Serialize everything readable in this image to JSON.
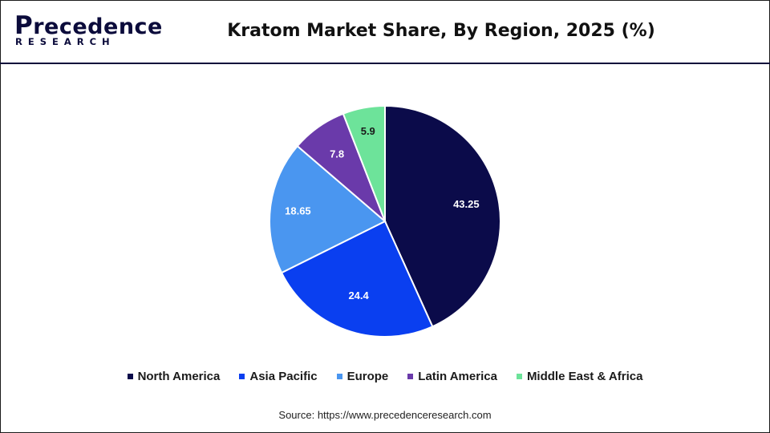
{
  "header": {
    "logo_main": "recedence",
    "logo_initial": "P",
    "logo_sub": "RESEARCH",
    "title": "Kratom Market Share, By Region, 2025 (%)"
  },
  "chart_data": {
    "type": "pie",
    "title": "Kratom Market Share, By Region, 2025 (%)",
    "categories": [
      "North America",
      "Asia Pacific",
      "Europe",
      "Latin America",
      "Middle East & Africa"
    ],
    "values": [
      43.25,
      24.4,
      18.65,
      7.8,
      5.9
    ],
    "labels": [
      "43.25",
      "24.4",
      "18.65",
      "7.8",
      "5.9"
    ],
    "colors": [
      "#0b0b4a",
      "#0a3ff0",
      "#4a96f0",
      "#6a3aaa",
      "#6de39a"
    ],
    "legend_position": "bottom"
  },
  "source": "Source: https://www.precedenceresearch.com"
}
